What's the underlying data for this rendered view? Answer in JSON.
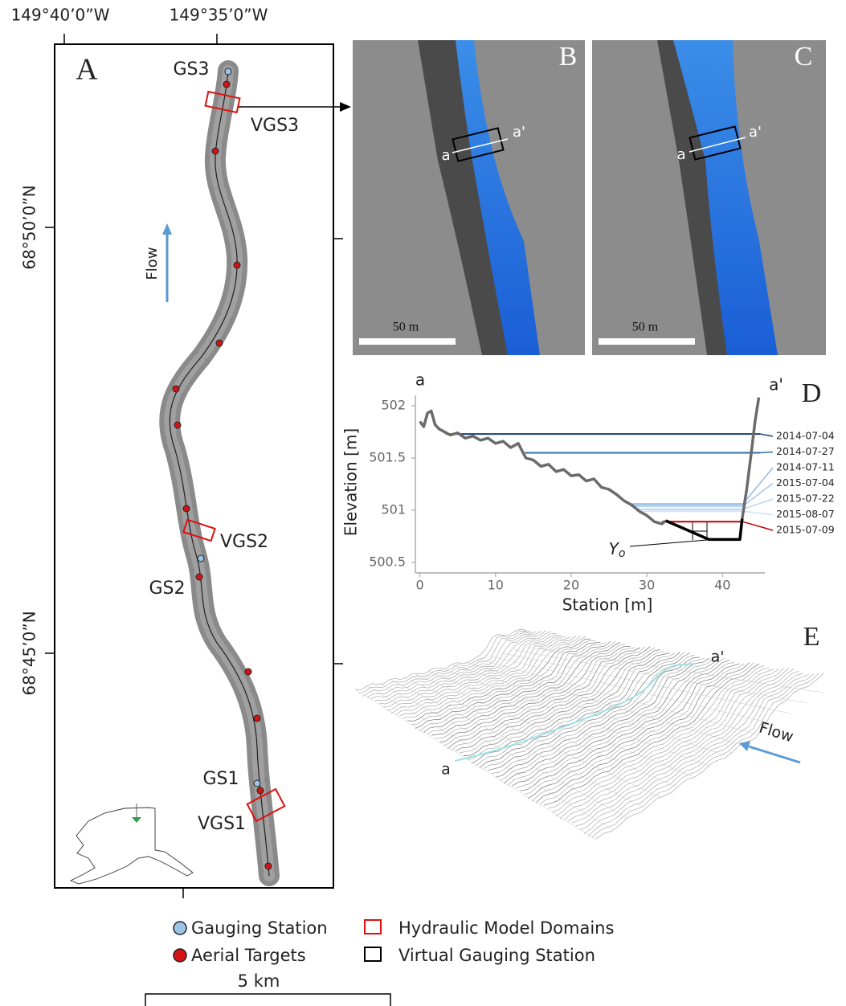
{
  "map": {
    "panel": "A",
    "lon_labels": [
      "149°40’0”W",
      "149°35’0”W"
    ],
    "lat_labels": [
      "68°50’0”N",
      "68°45’0”N"
    ],
    "sites": [
      "GS3",
      "VGS3",
      "VGS2",
      "GS2",
      "GS1",
      "VGS1"
    ],
    "flow": "Flow"
  },
  "photos": [
    {
      "panel": "B",
      "start": "a",
      "end": "a'",
      "scale": "50 m"
    },
    {
      "panel": "C",
      "start": "a",
      "end": "a'",
      "scale": "50 m"
    }
  ],
  "chart_data": {
    "type": "line",
    "panel": "D",
    "start": "a",
    "end": "a'",
    "annotation": {
      "text": "Y",
      "subscript": "o"
    },
    "x_label": "Station [m]",
    "y_label": "Elevation [m]",
    "xlim": [
      -0.6,
      45.6
    ],
    "ylim": [
      500.4,
      502.1
    ],
    "xticks": [
      0,
      10,
      20,
      30,
      40
    ],
    "yticks": [
      500.5,
      501,
      {
        "value": 501.5,
        "label": "501.5"
      },
      502
    ],
    "profiles": [
      {
        "color": "#6b6b6b",
        "x": [
          0,
          0.5,
          1,
          1.5,
          2,
          2.5,
          3,
          4,
          5,
          6,
          7,
          8,
          9,
          10,
          11,
          12,
          13,
          14,
          15,
          16,
          17,
          18,
          19,
          20,
          21,
          22,
          23,
          24,
          25,
          26,
          27,
          28,
          29,
          30,
          31,
          32,
          32.5
        ],
        "values": [
          501.85,
          501.8,
          501.93,
          501.95,
          501.82,
          501.78,
          501.76,
          501.72,
          501.74,
          501.69,
          501.71,
          501.67,
          501.69,
          501.64,
          501.66,
          501.6,
          501.64,
          501.5,
          501.48,
          501.42,
          501.44,
          501.37,
          501.39,
          501.33,
          501.34,
          501.28,
          501.3,
          501.22,
          501.2,
          501.15,
          501.09,
          501.05,
          500.99,
          500.95,
          500.89,
          500.87,
          500.9
        ]
      },
      {
        "color": "#000000",
        "x": [
          32.5,
          38.2,
          42.3,
          42.6
        ],
        "values": [
          500.9,
          500.72,
          500.72,
          500.92
        ]
      },
      {
        "color": "#6b6b6b",
        "x": [
          42.6,
          43.2,
          43.8,
          44.3,
          44.8
        ],
        "values": [
          500.92,
          501.2,
          501.55,
          501.85,
          502.08
        ]
      }
    ],
    "series": [
      {
        "name": "2014-07-04",
        "color": "#1f3f6e",
        "x": [
          3.4,
          45
        ],
        "values": [
          501.73,
          501.73
        ]
      },
      {
        "name": "2014-07-27",
        "color": "#2e6fb0",
        "x": [
          13.9,
          45
        ],
        "values": [
          501.55,
          501.55
        ]
      },
      {
        "name": "2014-07-11",
        "color": "#8fb9e3",
        "x": [
          27.5,
          42.7
        ],
        "values": [
          501.06,
          501.06
        ]
      },
      {
        "name": "2015-07-04",
        "color": "#a6c6ea",
        "x": [
          27.8,
          42.7
        ],
        "values": [
          501.04,
          501.04
        ]
      },
      {
        "name": "2015-07-22",
        "color": "#bcd5f0",
        "x": [
          28.5,
          42.7
        ],
        "values": [
          501.01,
          501.01
        ]
      },
      {
        "name": "2015-08-07",
        "color": "#d0e2f5",
        "x": [
          29.5,
          42.7
        ],
        "values": [
          500.99,
          500.99
        ]
      },
      {
        "name": "2015-07-09",
        "color": "#c00000",
        "x": [
          32,
          42.7
        ],
        "values": [
          500.89,
          500.89
        ]
      }
    ]
  },
  "model3d": {
    "panel": "E",
    "start": "a",
    "end": "a'",
    "flow": "Flow"
  },
  "legend": {
    "items": [
      "Gauging Station",
      "Aerial Targets",
      "Hydraulic Model Domains",
      "Virtual Gauging Station"
    ],
    "scale": "5 km"
  }
}
